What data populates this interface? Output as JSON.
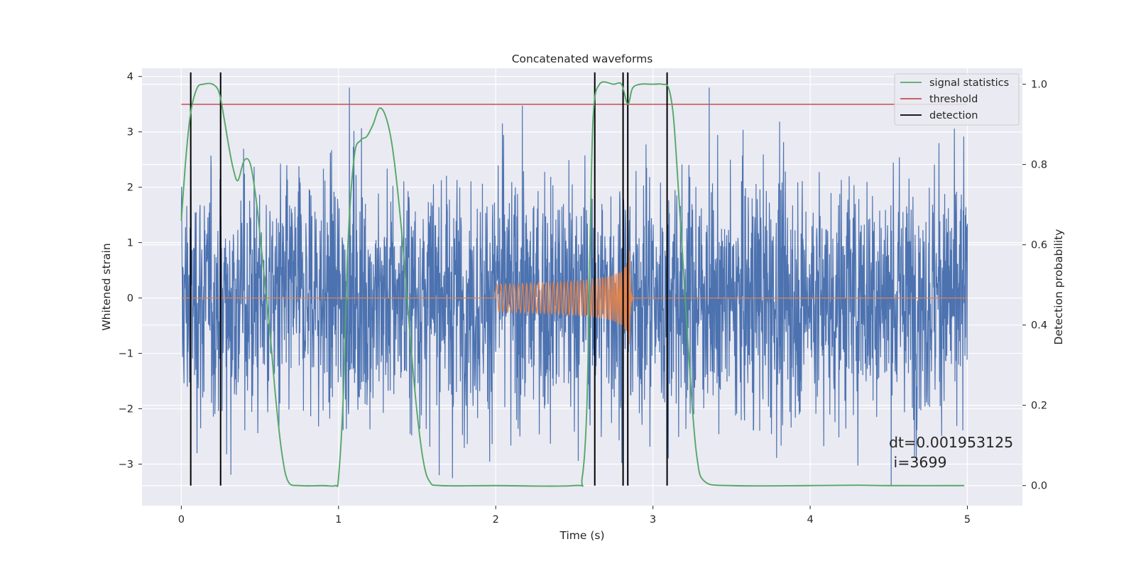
{
  "chart_data": {
    "type": "line",
    "title": "Concatenated waveforms",
    "xlabel": "Time (s)",
    "ylabel_left": "Whitened strain",
    "ylabel_right": "Detection probability",
    "xlim": [
      -0.25,
      5.35
    ],
    "ylim_left": [
      -3.75,
      4.15
    ],
    "ylim_right": [
      -0.05,
      1.04
    ],
    "x_ticks": [
      0,
      1,
      2,
      3,
      4,
      5
    ],
    "y_left_ticks": [
      -3,
      -2,
      -1,
      0,
      1,
      2,
      3,
      4
    ],
    "y_left_tick_labels": [
      "−3",
      "−2",
      "−1",
      "0",
      "1",
      "2",
      "3",
      "4"
    ],
    "y_right_ticks": [
      0.0,
      0.2,
      0.4,
      0.6,
      0.8,
      1.0
    ],
    "y_right_tick_labels": [
      "0.0",
      "0.2",
      "0.4",
      "0.6",
      "0.8",
      "1.0"
    ],
    "grid": true,
    "legend_position": "top-right",
    "legend": [
      {
        "label": "signal statistics",
        "color": "#55a868"
      },
      {
        "label": "threshold",
        "color": "#c44e52"
      },
      {
        "label": "detection",
        "color": "#000000"
      }
    ],
    "colors": {
      "noise": "#4c72b0",
      "chirp": "#dd8452",
      "signal_statistics": "#55a868",
      "threshold": "#c44e52",
      "detection": "#000000",
      "axes_background": "#eaeaf2",
      "grid": "#ffffff"
    },
    "series": [
      {
        "name": "signal statistics",
        "axis": "right",
        "x": [
          0.0,
          0.03,
          0.06,
          0.1,
          0.14,
          0.2,
          0.24,
          0.27,
          0.3,
          0.33,
          0.36,
          0.4,
          0.44,
          0.48,
          0.52,
          0.56,
          0.6,
          0.64,
          0.68,
          0.75,
          0.9,
          0.98,
          1.0,
          1.03,
          1.06,
          1.1,
          1.14,
          1.18,
          1.22,
          1.26,
          1.3,
          1.34,
          1.38,
          1.42,
          1.46,
          1.5,
          1.54,
          1.58,
          1.65,
          2.0,
          2.5,
          2.55,
          2.58,
          2.6,
          2.62,
          2.66,
          2.75,
          2.8,
          2.84,
          2.87,
          2.92,
          3.0,
          3.06,
          3.1,
          3.13,
          3.16,
          3.2,
          3.24,
          3.28,
          3.33,
          3.5,
          4.0,
          4.3,
          4.5,
          4.98
        ],
        "values": [
          0.66,
          0.82,
          0.93,
          0.99,
          1.0,
          1.0,
          0.98,
          0.92,
          0.85,
          0.79,
          0.76,
          0.81,
          0.8,
          0.7,
          0.55,
          0.4,
          0.22,
          0.08,
          0.01,
          0.0,
          0.0,
          0.0,
          0.02,
          0.22,
          0.6,
          0.82,
          0.86,
          0.87,
          0.9,
          0.94,
          0.92,
          0.85,
          0.72,
          0.55,
          0.35,
          0.18,
          0.06,
          0.01,
          0.0,
          0.0,
          0.0,
          0.02,
          0.2,
          0.6,
          0.92,
          1.0,
          1.0,
          1.0,
          0.95,
          0.99,
          1.0,
          1.0,
          1.0,
          0.99,
          0.92,
          0.75,
          0.5,
          0.25,
          0.07,
          0.01,
          0.0,
          0.0,
          0.001,
          0.0,
          0.0
        ]
      },
      {
        "name": "threshold",
        "axis": "right",
        "x": [
          0.0,
          5.0
        ],
        "values": [
          0.95,
          0.95
        ]
      }
    ],
    "detections_x": [
      0.06,
      0.25,
      2.63,
      2.81,
      2.84,
      3.09
    ],
    "noise": {
      "x_range": [
        0.0,
        5.0
      ],
      "typical_abs_amplitude": 1.5,
      "approx_max": 3.8,
      "approx_min": -3.4
    },
    "chirp": {
      "start_x": 2.0,
      "merger_x": 2.85,
      "start_amplitude": 0.25,
      "peak_amplitude": 0.95
    },
    "annotations": [
      "dt=0.001953125",
      " i=3699"
    ]
  }
}
